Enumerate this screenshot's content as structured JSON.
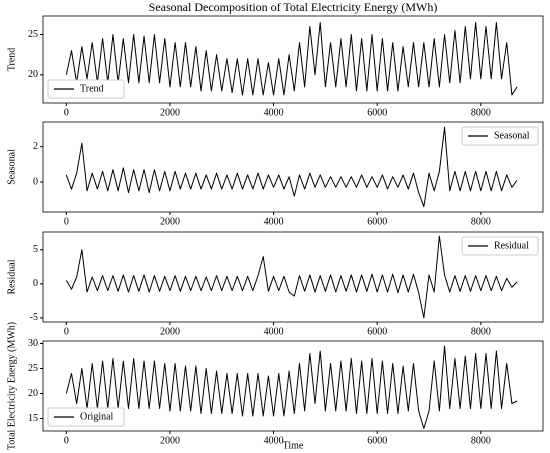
{
  "chart_data": [
    {
      "type": "line",
      "title": "Seasonal Decomposition of Total Electricity Energy (MWh)",
      "ylabel": "Trend",
      "legend": "lower left",
      "x": [
        0,
        100,
        200,
        300,
        400,
        500,
        600,
        700,
        800,
        900,
        1000,
        1100,
        1200,
        1300,
        1400,
        1500,
        1600,
        1700,
        1800,
        1900,
        2000,
        2100,
        2200,
        2300,
        2400,
        2500,
        2600,
        2700,
        2800,
        2900,
        3000,
        3100,
        3200,
        3300,
        3400,
        3500,
        3600,
        3700,
        3800,
        3900,
        4000,
        4100,
        4200,
        4300,
        4400,
        4500,
        4600,
        4700,
        4800,
        4900,
        5000,
        5100,
        5200,
        5300,
        5400,
        5500,
        5600,
        5700,
        5800,
        5900,
        6000,
        6100,
        6200,
        6300,
        6400,
        6500,
        6600,
        6700,
        6800,
        6900,
        7000,
        7100,
        7200,
        7300,
        7400,
        7500,
        7600,
        7700,
        7800,
        7900,
        8000,
        8100,
        8200,
        8300,
        8400,
        8500,
        8600,
        8700
      ],
      "series": [
        {
          "name": "Trend",
          "color": "#000000",
          "values": [
            20,
            23,
            19,
            23.5,
            19.5,
            24,
            19,
            24.5,
            19,
            25,
            19,
            24.5,
            19,
            25,
            19,
            24.8,
            19,
            25,
            19,
            24.5,
            18.5,
            24,
            18.5,
            24,
            18.5,
            23.5,
            18,
            23,
            18,
            22.5,
            18,
            22,
            17.8,
            22,
            17.5,
            22,
            17.5,
            22,
            17.5,
            21.5,
            17.5,
            22,
            17.5,
            22.5,
            18,
            24,
            18.5,
            26,
            20,
            26.5,
            18.5,
            24,
            18.5,
            24.5,
            18.5,
            25,
            18,
            24.5,
            18,
            25,
            18,
            24.5,
            18,
            24,
            18,
            23.5,
            18.5,
            24,
            18.5,
            24,
            18.5,
            24.5,
            18.5,
            25,
            19,
            25.5,
            19,
            26,
            19.5,
            26.5,
            19.5,
            26,
            19.5,
            26.5,
            19.5,
            24,
            17.5,
            18.5
          ]
        }
      ],
      "xlim": [
        -450,
        9200
      ],
      "xticks": [
        0,
        2000,
        4000,
        6000,
        8000
      ],
      "ylim": [
        16.5,
        27.3
      ],
      "yticks": [
        20,
        25
      ]
    },
    {
      "type": "line",
      "ylabel": "Seasonal",
      "legend": "upper right",
      "x": [
        0,
        100,
        200,
        300,
        400,
        500,
        600,
        700,
        800,
        900,
        1000,
        1100,
        1200,
        1300,
        1400,
        1500,
        1600,
        1700,
        1800,
        1900,
        2000,
        2100,
        2200,
        2300,
        2400,
        2500,
        2600,
        2700,
        2800,
        2900,
        3000,
        3100,
        3200,
        3300,
        3400,
        3500,
        3600,
        3700,
        3800,
        3900,
        4000,
        4100,
        4200,
        4300,
        4400,
        4500,
        4600,
        4700,
        4800,
        4900,
        5000,
        5100,
        5200,
        5300,
        5400,
        5500,
        5600,
        5700,
        5800,
        5900,
        6000,
        6100,
        6200,
        6300,
        6400,
        6500,
        6600,
        6700,
        6800,
        6900,
        7000,
        7100,
        7200,
        7300,
        7400,
        7500,
        7600,
        7700,
        7800,
        7900,
        8000,
        8100,
        8200,
        8300,
        8400,
        8500,
        8600,
        8700
      ],
      "series": [
        {
          "name": "Seasonal",
          "color": "#000000",
          "values": [
            0.4,
            -0.4,
            0.5,
            2.2,
            -0.5,
            0.5,
            -0.4,
            0.6,
            -0.5,
            0.7,
            -0.5,
            0.8,
            -0.6,
            0.7,
            -0.5,
            0.7,
            -0.6,
            0.7,
            -0.5,
            0.6,
            -0.5,
            0.6,
            -0.4,
            0.5,
            -0.4,
            0.5,
            -0.4,
            0.4,
            -0.4,
            0.5,
            -0.4,
            0.4,
            -0.4,
            0.5,
            -0.4,
            0.4,
            -0.4,
            0.5,
            -0.4,
            0.4,
            -0.3,
            0.4,
            -0.4,
            0.3,
            -0.8,
            0.4,
            -0.4,
            0.5,
            -0.3,
            0.4,
            -0.3,
            0.3,
            -0.3,
            0.3,
            -0.3,
            0.3,
            -0.3,
            0.4,
            -0.3,
            0.3,
            -0.3,
            0.4,
            -0.4,
            0.3,
            -0.3,
            0.4,
            -0.4,
            0.5,
            -0.6,
            -1.4,
            0.5,
            -0.5,
            0.6,
            3.1,
            -0.5,
            0.6,
            -0.5,
            0.6,
            -0.5,
            0.6,
            -0.5,
            0.6,
            -0.5,
            0.6,
            -0.5,
            0.4,
            -0.3,
            0.1
          ]
        }
      ],
      "xlim": [
        -450,
        9200
      ],
      "xticks": [
        0,
        2000,
        4000,
        6000,
        8000
      ],
      "ylim": [
        -1.7,
        3.4
      ],
      "yticks": [
        0,
        2
      ]
    },
    {
      "type": "line",
      "ylabel": "Residual",
      "legend": "upper right",
      "x": [
        0,
        100,
        200,
        300,
        400,
        500,
        600,
        700,
        800,
        900,
        1000,
        1100,
        1200,
        1300,
        1400,
        1500,
        1600,
        1700,
        1800,
        1900,
        2000,
        2100,
        2200,
        2300,
        2400,
        2500,
        2600,
        2700,
        2800,
        2900,
        3000,
        3100,
        3200,
        3300,
        3400,
        3500,
        3600,
        3700,
        3800,
        3900,
        4000,
        4100,
        4200,
        4300,
        4400,
        4500,
        4600,
        4700,
        4800,
        4900,
        5000,
        5100,
        5200,
        5300,
        5400,
        5500,
        5600,
        5700,
        5800,
        5900,
        6000,
        6100,
        6200,
        6300,
        6400,
        6500,
        6600,
        6700,
        6800,
        6900,
        7000,
        7100,
        7200,
        7300,
        7400,
        7500,
        7600,
        7700,
        7800,
        7900,
        8000,
        8100,
        8200,
        8300,
        8400,
        8500,
        8600,
        8700
      ],
      "series": [
        {
          "name": "Residual",
          "color": "#000000",
          "values": [
            0.5,
            -0.8,
            1,
            5,
            -1.2,
            1,
            -1,
            1.2,
            -1,
            1.2,
            -1.1,
            1.3,
            -1.2,
            1.2,
            -1.1,
            1.3,
            -1.2,
            1.2,
            -1.1,
            1.1,
            -1,
            1.2,
            -1.1,
            1.1,
            -1,
            1.1,
            -1,
            1,
            -1,
            1.2,
            -1,
            1.1,
            -1,
            1.1,
            -1,
            1.1,
            -1,
            1.2,
            4,
            -1.1,
            1.1,
            -1,
            1.1,
            -1.2,
            -1.8,
            1.2,
            -1.1,
            1.3,
            -1.2,
            1.2,
            -1.1,
            1.3,
            -1.2,
            1.2,
            -1.1,
            1.3,
            -1.2,
            1.3,
            -1.1,
            1.4,
            -1.2,
            1.3,
            -1.2,
            1.4,
            -1.3,
            1.3,
            -1.2,
            1.4,
            -1.3,
            -5,
            1.3,
            -1.2,
            7,
            1.3,
            -1.2,
            1.2,
            -1.1,
            1.2,
            -1.1,
            1.2,
            -1,
            1.2,
            -1,
            1.1,
            -1,
            0.8,
            -0.5,
            0.3
          ]
        }
      ],
      "xlim": [
        -450,
        9200
      ],
      "xticks": [
        0,
        2000,
        4000,
        6000,
        8000
      ],
      "ylim": [
        -5.6,
        7.6
      ],
      "yticks": [
        -5,
        0,
        5
      ]
    },
    {
      "type": "line",
      "ylabel": "Total Electricity Energy (MWh)",
      "xlabel": "Time",
      "legend": "lower left",
      "x": [
        0,
        100,
        200,
        300,
        400,
        500,
        600,
        700,
        800,
        900,
        1000,
        1100,
        1200,
        1300,
        1400,
        1500,
        1600,
        1700,
        1800,
        1900,
        2000,
        2100,
        2200,
        2300,
        2400,
        2500,
        2600,
        2700,
        2800,
        2900,
        3000,
        3100,
        3200,
        3300,
        3400,
        3500,
        3600,
        3700,
        3800,
        3900,
        4000,
        4100,
        4200,
        4300,
        4400,
        4500,
        4600,
        4700,
        4800,
        4900,
        5000,
        5100,
        5200,
        5300,
        5400,
        5500,
        5600,
        5700,
        5800,
        5900,
        6000,
        6100,
        6200,
        6300,
        6400,
        6500,
        6600,
        6700,
        6800,
        6900,
        7000,
        7100,
        7200,
        7300,
        7400,
        7500,
        7600,
        7700,
        7800,
        7900,
        8000,
        8100,
        8200,
        8300,
        8400,
        8500,
        8600,
        8700
      ],
      "series": [
        {
          "name": "Original",
          "color": "#000000",
          "values": [
            20,
            24,
            18,
            25,
            17,
            26,
            17,
            26.5,
            17,
            27,
            17,
            26.5,
            17,
            27,
            17,
            26.5,
            17,
            26.5,
            17,
            26,
            16.5,
            26,
            16.5,
            25.5,
            16.5,
            25.5,
            16,
            25,
            16,
            24.5,
            16,
            24,
            16,
            24,
            15.5,
            24,
            15.5,
            24,
            15.5,
            23.5,
            15.5,
            24,
            15.5,
            24.5,
            16,
            26,
            16.5,
            28,
            18,
            28.5,
            16.5,
            26,
            16.5,
            26.5,
            16.5,
            27,
            16,
            26.5,
            16,
            27,
            16,
            26.5,
            16,
            26,
            16,
            25.5,
            16.5,
            26,
            16.5,
            13,
            16.5,
            26.5,
            16.5,
            29.5,
            17,
            27,
            17,
            27.5,
            17,
            28,
            17,
            28,
            17,
            28.5,
            17,
            26,
            18,
            18.5
          ]
        }
      ],
      "xlim": [
        -450,
        9200
      ],
      "xticks": [
        0,
        2000,
        4000,
        6000,
        8000
      ],
      "ylim": [
        12.5,
        30.5
      ],
      "yticks": [
        15,
        20,
        25,
        30
      ]
    }
  ]
}
